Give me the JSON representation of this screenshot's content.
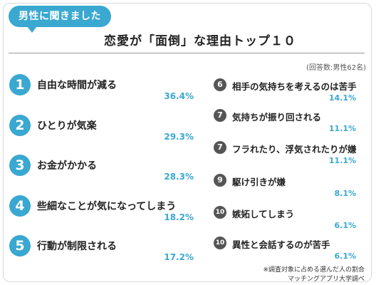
{
  "header": {
    "badge": "男性に聞きました",
    "title": "恋愛が「面倒」な理由トップ１０",
    "respondents": "(回答数:男性62名)"
  },
  "footer": {
    "note1": "※調査対象に占める選んだ人の割合",
    "note2": "マッチングアプリ大学調べ"
  },
  "chart_data": {
    "type": "table",
    "title": "恋愛が「面倒」な理由トップ１０",
    "columns": [
      "rank",
      "reason",
      "percent"
    ],
    "rows": [
      {
        "rank": "1",
        "reason": "自由な時間が減る",
        "percent": "36.4%"
      },
      {
        "rank": "2",
        "reason": "ひとりが気楽",
        "percent": "29.3%"
      },
      {
        "rank": "3",
        "reason": "お金がかかる",
        "percent": "28.3%"
      },
      {
        "rank": "4",
        "reason": "些細なことが気になってしまう",
        "percent": "18.2%"
      },
      {
        "rank": "5",
        "reason": "行動が制限される",
        "percent": "17.2%"
      },
      {
        "rank": "6",
        "reason": "相手の気持ちを考えるのは苦手",
        "percent": "14.1%"
      },
      {
        "rank": "7",
        "reason": "気持ちが振り回される",
        "percent": "11.1%"
      },
      {
        "rank": "7",
        "reason": "フラれたり、浮気されたりが嫌",
        "percent": "11.1%"
      },
      {
        "rank": "9",
        "reason": "駆け引きが嫌",
        "percent": "8.1%"
      },
      {
        "rank": "10",
        "reason": "嫉妬してしまう",
        "percent": "6.1%"
      },
      {
        "rank": "10",
        "reason": "異性と会話するのが苦手",
        "percent": "6.1%"
      }
    ]
  },
  "colors": {
    "accent": "#3aa8d0",
    "rank_dark": "#555555"
  }
}
